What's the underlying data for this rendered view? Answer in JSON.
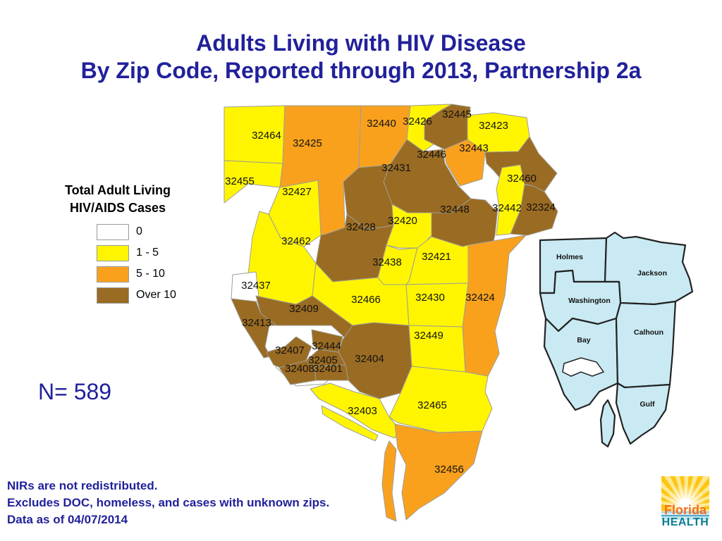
{
  "title": {
    "line1": "Adults Living with HIV Disease",
    "line2": "By Zip Code, Reported through 2013, Partnership 2a"
  },
  "legend": {
    "title_line1": "Total Adult Living",
    "title_line2": "HIV/AIDS Cases",
    "items": [
      {
        "label": "0",
        "category": "zero",
        "color": "#ffffff"
      },
      {
        "label": "1 - 5",
        "category": "low",
        "color": "#fff500"
      },
      {
        "label": "5 - 10",
        "category": "mid",
        "color": "#f9a11d"
      },
      {
        "label": "Over 10",
        "category": "high",
        "color": "#9a6b22"
      }
    ]
  },
  "total": {
    "label": "N= 589"
  },
  "notes": [
    "NIRs are not redistributed.",
    "Excludes DOC, homeless, and cases with unknown zips.",
    "Data as of 04/07/2014"
  ],
  "map": {
    "border_color": "#9e9e97",
    "regions": [
      {
        "zip": "32464",
        "category": "low"
      },
      {
        "zip": "32455",
        "category": "low"
      },
      {
        "zip": "32425",
        "category": "mid"
      },
      {
        "zip": "32427",
        "category": "low"
      },
      {
        "zip": "32440",
        "category": "mid"
      },
      {
        "zip": "32426",
        "category": "low"
      },
      {
        "zip": "32445",
        "category": "high"
      },
      {
        "zip": "32423",
        "category": "low"
      },
      {
        "zip": "32443",
        "category": "mid"
      },
      {
        "zip": "32446",
        "category": "high"
      },
      {
        "zip": "32431",
        "category": "high"
      },
      {
        "zip": "32428",
        "category": "high"
      },
      {
        "zip": "32448",
        "category": "high"
      },
      {
        "zip": "32420",
        "category": "low"
      },
      {
        "zip": "32460",
        "category": "high"
      },
      {
        "zip": "32324",
        "category": "high"
      },
      {
        "zip": "32442",
        "category": "low"
      },
      {
        "zip": "32462",
        "category": "low"
      },
      {
        "zip": "32438",
        "category": "low"
      },
      {
        "zip": "32421",
        "category": "low"
      },
      {
        "zip": "32424",
        "category": "mid"
      },
      {
        "zip": "32437",
        "category": "zero"
      },
      {
        "zip": "32466",
        "category": "low"
      },
      {
        "zip": "32430",
        "category": "low"
      },
      {
        "zip": "32409",
        "category": "high"
      },
      {
        "zip": "32413",
        "category": "high"
      },
      {
        "zip": "32407",
        "category": "high"
      },
      {
        "zip": "32444",
        "category": "high"
      },
      {
        "zip": "32405",
        "category": "high"
      },
      {
        "zip": "32408",
        "category": "high"
      },
      {
        "zip": "32401",
        "category": "high"
      },
      {
        "zip": "32404",
        "category": "high"
      },
      {
        "zip": "32449",
        "category": "low"
      },
      {
        "zip": "32465",
        "category": "low"
      },
      {
        "zip": "32403",
        "category": "low"
      },
      {
        "zip": "32456",
        "category": "mid"
      }
    ]
  },
  "inset": {
    "fill": "#c9eaf3",
    "counties": [
      "Holmes",
      "Jackson",
      "Washington",
      "Bay",
      "Calhoun",
      "Gulf"
    ]
  },
  "logo": {
    "line1": "Florida",
    "line2": "HEALTH"
  }
}
